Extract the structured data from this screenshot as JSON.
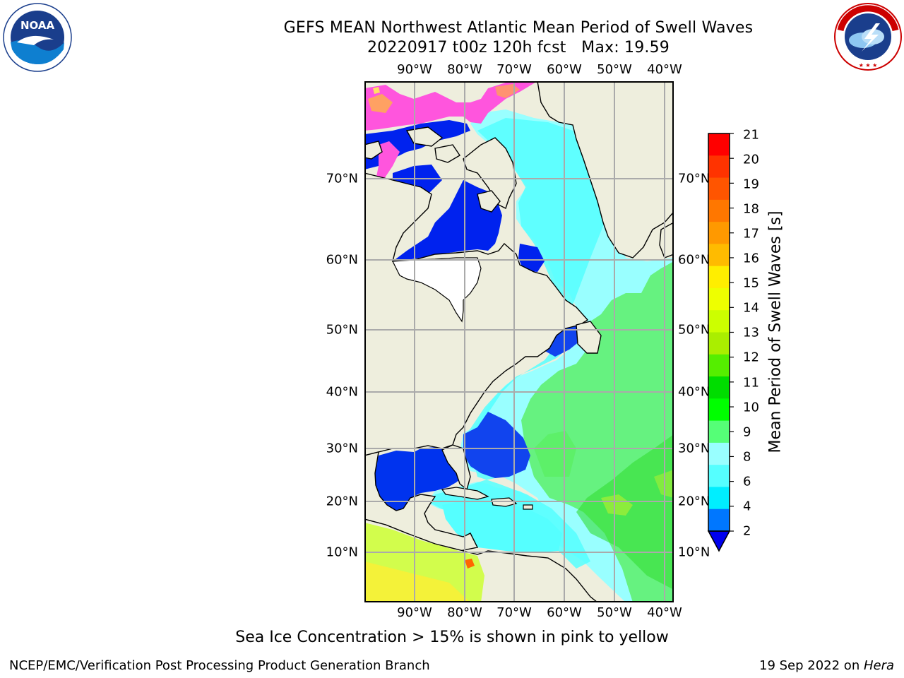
{
  "header": {
    "title_line1": "GEFS MEAN Northwest Atlantic Mean Period of Swell Waves",
    "title_line2": "20220917 t00z 120h fcst   Max: 19.59"
  },
  "logos": {
    "left": "NOAA",
    "left_ring_text": "NATIONAL OCEANIC AND ATMOSPHERIC ADMINISTRATION · U.S. DEPARTMENT OF COMMERCE",
    "right_ring_text": "NATIONAL WEATHER SERVICE"
  },
  "map": {
    "longitude_labels": [
      "90°W",
      "80°W",
      "70°W",
      "60°W",
      "50°W",
      "40°W"
    ],
    "latitude_labels": [
      "70°N",
      "60°N",
      "50°N",
      "40°N",
      "30°N",
      "20°N",
      "10°N"
    ]
  },
  "colorbar": {
    "title": "Mean Period of Swell Waves [s]",
    "ticks": [
      "21",
      "20",
      "19",
      "18",
      "17",
      "16",
      "15",
      "14",
      "13",
      "12",
      "11",
      "10",
      "9",
      "8",
      "6",
      "4",
      "2"
    ],
    "colors": [
      "#ff0000",
      "#ff3300",
      "#ff5500",
      "#ff7700",
      "#ff9900",
      "#ffbb00",
      "#ffee00",
      "#eeff00",
      "#ccff00",
      "#aaee00",
      "#55ee00",
      "#00dd00",
      "#00ff00",
      "#55ff77",
      "#99ffff",
      "#55ffff",
      "#00eeff",
      "#0077ff"
    ],
    "under_color": "#0000ee",
    "land_color": "#eeeedd"
  },
  "footer": {
    "note": "Sea Ice Concentration > 15% is shown in pink to yellow",
    "credit": "NCEP/EMC/Verification Post Processing Product Generation Branch",
    "date": "19 Sep 2022 on ",
    "machine": "Hera"
  }
}
